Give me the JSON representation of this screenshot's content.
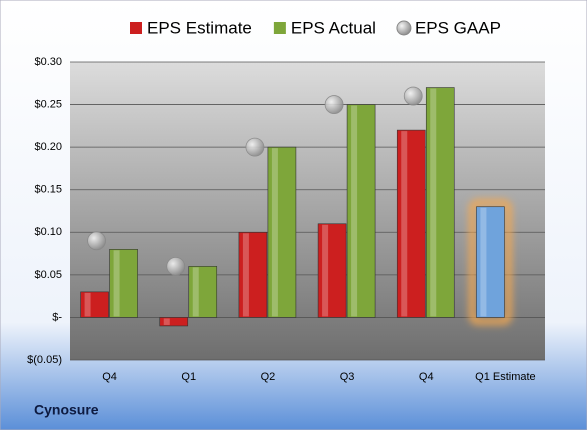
{
  "chart_data": {
    "type": "bar",
    "title": "Cynosure",
    "categories": [
      "Q4",
      "Q1",
      "Q2",
      "Q3",
      "Q4",
      "Q1 Estimate"
    ],
    "series": [
      {
        "name": "EPS Estimate",
        "color": "#cc1f1f",
        "values": [
          0.03,
          -0.01,
          0.1,
          0.11,
          0.22,
          0.13
        ],
        "highlight": {
          "index": 5,
          "color": "#6fa3dc",
          "glow": "#f6a94f"
        }
      },
      {
        "name": "EPS Actual",
        "color": "#7ea63a",
        "values": [
          0.08,
          0.06,
          0.2,
          0.25,
          0.27,
          null
        ]
      },
      {
        "name": "EPS GAAP",
        "color": "#b0b0b0",
        "marker": "circle",
        "values": [
          0.09,
          0.06,
          0.2,
          0.25,
          0.26,
          null
        ]
      }
    ],
    "ylim": [
      -0.05,
      0.3
    ],
    "yticks": [
      {
        "value": -0.05,
        "label": "$(0.05)"
      },
      {
        "value": 0,
        "label": "$-"
      },
      {
        "value": 0.05,
        "label": "$0.05"
      },
      {
        "value": 0.1,
        "label": "$0.10"
      },
      {
        "value": 0.15,
        "label": "$0.15"
      },
      {
        "value": 0.2,
        "label": "$0.20"
      },
      {
        "value": 0.25,
        "label": "$0.25"
      },
      {
        "value": 0.3,
        "label": "$0.30"
      }
    ],
    "grid": true,
    "legend": "top"
  }
}
